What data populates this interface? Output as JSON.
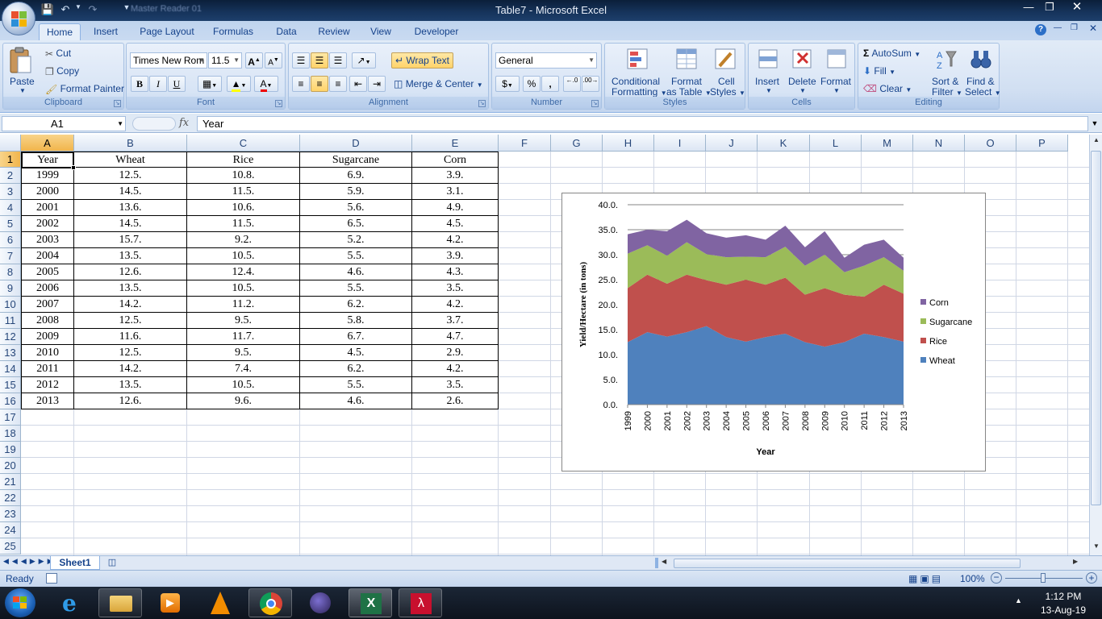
{
  "window": {
    "title": "Table7 - Microsoft Excel",
    "book_hint": "Master Reader 01"
  },
  "tabs": [
    "Home",
    "Insert",
    "Page Layout",
    "Formulas",
    "Data",
    "Review",
    "View",
    "Developer"
  ],
  "clipboard": {
    "paste": "Paste",
    "cut": "Cut",
    "copy": "Copy",
    "format_painter": "Format Painter",
    "label": "Clipboard"
  },
  "font": {
    "name": "Times New Rom",
    "size": "11.5",
    "bold": "B",
    "italic": "I",
    "underline": "U",
    "label": "Font"
  },
  "alignment": {
    "wrap": "Wrap Text",
    "merge": "Merge & Center",
    "label": "Alignment"
  },
  "number": {
    "format": "General",
    "currency": "$",
    "percent": "%",
    "comma": ",",
    "inc": ".0\n.00",
    "dec": ".00\n.0",
    "label": "Number"
  },
  "styles": {
    "cond": "Conditional",
    "cond2": "Formatting",
    "fmt": "Format",
    "fmt2": "as Table",
    "cell": "Cell",
    "cell2": "Styles",
    "label": "Styles"
  },
  "cells": {
    "insert": "Insert",
    "delete": "Delete",
    "format": "Format",
    "label": "Cells"
  },
  "editing": {
    "autosum": "AutoSum",
    "fill": "Fill",
    "clear": "Clear",
    "sort": "Sort &",
    "sort2": "Filter",
    "find": "Find &",
    "find2": "Select",
    "label": "Editing"
  },
  "formula_bar": {
    "name_box": "A1",
    "fx": "fx",
    "value": "Year"
  },
  "columns": [
    "A",
    "B",
    "C",
    "D",
    "E",
    "F",
    "G",
    "H",
    "I",
    "J",
    "K",
    "L",
    "M",
    "N",
    "O",
    "P"
  ],
  "rows": [
    "1",
    "2",
    "3",
    "4",
    "5",
    "6",
    "7",
    "8",
    "9",
    "10",
    "11",
    "12",
    "13",
    "14",
    "15",
    "16",
    "17",
    "18",
    "19",
    "20",
    "21",
    "22",
    "23",
    "24",
    "25"
  ],
  "table": {
    "headers": [
      "Year",
      "Wheat",
      "Rice",
      "Sugarcane",
      "Corn"
    ],
    "rows": [
      [
        "1999",
        "12.5.",
        "10.8.",
        "6.9.",
        "3.9."
      ],
      [
        "2000",
        "14.5.",
        "11.5.",
        "5.9.",
        "3.1."
      ],
      [
        "2001",
        "13.6.",
        "10.6.",
        "5.6.",
        "4.9."
      ],
      [
        "2002",
        "14.5.",
        "11.5.",
        "6.5.",
        "4.5."
      ],
      [
        "2003",
        "15.7.",
        "9.2.",
        "5.2.",
        "4.2."
      ],
      [
        "2004",
        "13.5.",
        "10.5.",
        "5.5.",
        "3.9."
      ],
      [
        "2005",
        "12.6.",
        "12.4.",
        "4.6.",
        "4.3."
      ],
      [
        "2006",
        "13.5.",
        "10.5.",
        "5.5.",
        "3.5."
      ],
      [
        "2007",
        "14.2.",
        "11.2.",
        "6.2.",
        "4.2."
      ],
      [
        "2008",
        "12.5.",
        "9.5.",
        "5.8.",
        "3.7."
      ],
      [
        "2009",
        "11.6.",
        "11.7.",
        "6.7.",
        "4.7."
      ],
      [
        "2010",
        "12.5.",
        "9.5.",
        "4.5.",
        "2.9."
      ],
      [
        "2011",
        "14.2.",
        "7.4.",
        "6.2.",
        "4.2."
      ],
      [
        "2012",
        "13.5.",
        "10.5.",
        "5.5.",
        "3.5."
      ],
      [
        "2013",
        "12.6.",
        "9.6.",
        "4.6.",
        "2.6."
      ]
    ]
  },
  "chart_data": {
    "type": "area",
    "stacked": true,
    "categories": [
      "1999",
      "2000",
      "2001",
      "2002",
      "2003",
      "2004",
      "2005",
      "2006",
      "2007",
      "2008",
      "2009",
      "2010",
      "2011",
      "2012",
      "2013"
    ],
    "series": [
      {
        "name": "Wheat",
        "color": "#4f81bd",
        "values": [
          12.5,
          14.5,
          13.6,
          14.5,
          15.7,
          13.5,
          12.6,
          13.5,
          14.2,
          12.5,
          11.6,
          12.5,
          14.2,
          13.5,
          12.6
        ]
      },
      {
        "name": "Rice",
        "color": "#c0504d",
        "values": [
          10.8,
          11.5,
          10.6,
          11.5,
          9.2,
          10.5,
          12.4,
          10.5,
          11.2,
          9.5,
          11.7,
          9.5,
          7.4,
          10.5,
          9.6
        ]
      },
      {
        "name": "Sugarcane",
        "color": "#9bbb59",
        "values": [
          6.9,
          5.9,
          5.6,
          6.5,
          5.2,
          5.5,
          4.6,
          5.5,
          6.2,
          5.8,
          6.7,
          4.5,
          6.2,
          5.5,
          4.6
        ]
      },
      {
        "name": "Corn",
        "color": "#8064a2",
        "values": [
          3.9,
          3.1,
          4.9,
          4.5,
          4.2,
          3.9,
          4.3,
          3.5,
          4.2,
          3.7,
          4.7,
          2.9,
          4.2,
          3.5,
          2.6
        ]
      }
    ],
    "xlabel": "Year",
    "ylabel": "Yield/Hectare (in tons)",
    "ylim": [
      0,
      40
    ],
    "yticks": [
      "0.0.",
      "5.0.",
      "10.0.",
      "15.0.",
      "20.0.",
      "25.0.",
      "30.0.",
      "35.0.",
      "40.0."
    ],
    "legend": "right",
    "grid": true
  },
  "sheet": {
    "tab": "Sheet1"
  },
  "status": {
    "ready": "Ready",
    "zoom": "100%"
  },
  "taskbar": {
    "time": "1:12 PM",
    "date": "13-Aug-19"
  }
}
